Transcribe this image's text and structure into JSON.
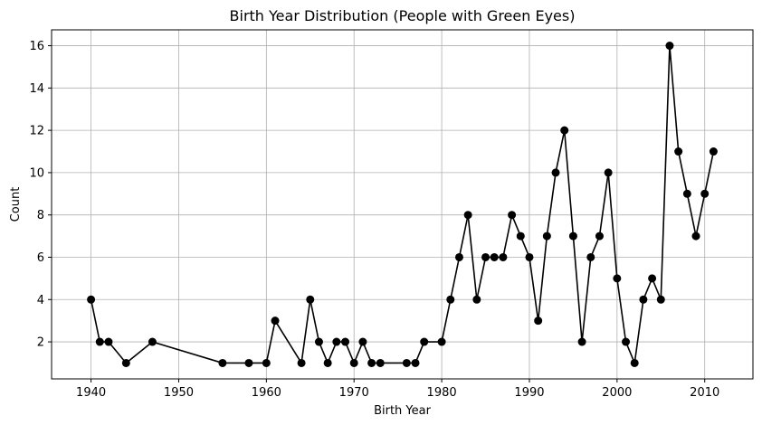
{
  "chart_data": {
    "type": "line",
    "title": "Birth Year Distribution (People with Green Eyes)",
    "xlabel": "Birth Year",
    "ylabel": "Count",
    "xlim": [
      1935.5,
      2015.5
    ],
    "ylim": [
      0.25,
      16.75
    ],
    "xticks": [
      1940,
      1950,
      1960,
      1970,
      1980,
      1990,
      2000,
      2010
    ],
    "yticks": [
      2,
      4,
      6,
      8,
      10,
      12,
      14,
      16
    ],
    "grid": true,
    "line_color": "#000000",
    "marker": "circle",
    "x": [
      1940,
      1941,
      1942,
      1944,
      1947,
      1955,
      1958,
      1960,
      1961,
      1964,
      1965,
      1966,
      1967,
      1968,
      1969,
      1970,
      1971,
      1972,
      1973,
      1976,
      1977,
      1978,
      1980,
      1981,
      1982,
      1983,
      1984,
      1985,
      1986,
      1987,
      1988,
      1989,
      1990,
      1991,
      1992,
      1993,
      1994,
      1995,
      1996,
      1997,
      1998,
      1999,
      2000,
      2001,
      2002,
      2003,
      2004,
      2005,
      2006,
      2007,
      2008,
      2009,
      2010,
      2011
    ],
    "y": [
      4,
      2,
      2,
      1,
      2,
      1,
      1,
      1,
      3,
      1,
      4,
      2,
      1,
      2,
      2,
      1,
      2,
      1,
      1,
      1,
      1,
      2,
      2,
      4,
      6,
      8,
      4,
      6,
      6,
      6,
      8,
      7,
      6,
      3,
      7,
      10,
      12,
      7,
      2,
      6,
      7,
      10,
      5,
      2,
      1,
      4,
      5,
      4,
      16,
      11,
      9,
      7,
      9,
      11
    ]
  }
}
